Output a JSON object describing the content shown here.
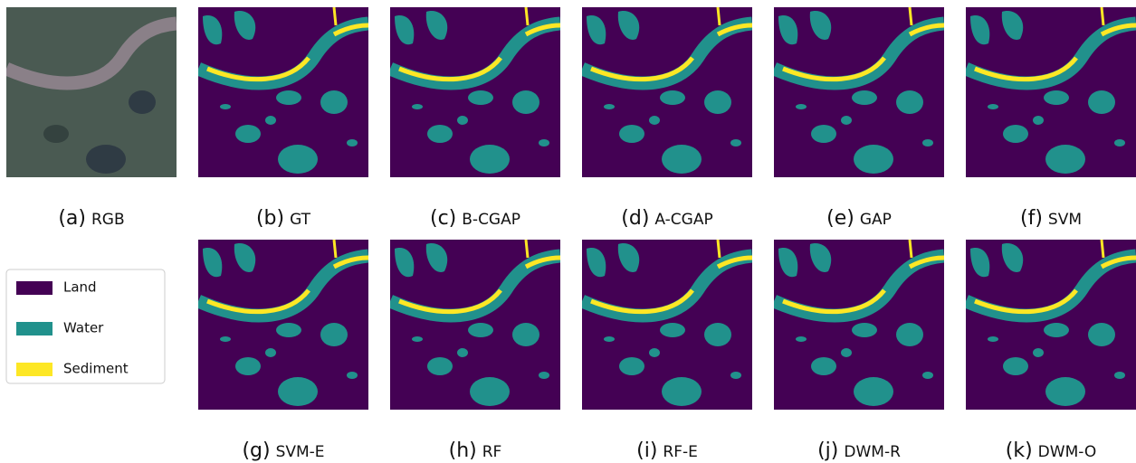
{
  "panels": [
    {
      "tag": "(a)",
      "name": "RGB",
      "kind": "rgb"
    },
    {
      "tag": "(b)",
      "name": "GT",
      "kind": "map"
    },
    {
      "tag": "(c)",
      "name": "B-CGAP",
      "kind": "map"
    },
    {
      "tag": "(d)",
      "name": "A-CGAP",
      "kind": "map"
    },
    {
      "tag": "(e)",
      "name": "GAP",
      "kind": "map"
    },
    {
      "tag": "(f)",
      "name": "SVM",
      "kind": "map"
    },
    {
      "tag": "(g)",
      "name": "SVM-E",
      "kind": "map"
    },
    {
      "tag": "(h)",
      "name": "RF",
      "kind": "map"
    },
    {
      "tag": "(i)",
      "name": "RF-E",
      "kind": "map"
    },
    {
      "tag": "(j)",
      "name": "DWM-R",
      "kind": "map"
    },
    {
      "tag": "(k)",
      "name": "DWM-O",
      "kind": "map"
    }
  ],
  "legend": {
    "items": [
      {
        "label": "Land",
        "color": "#440154"
      },
      {
        "label": "Water",
        "color": "#21918c"
      },
      {
        "label": "Sediment",
        "color": "#fde725"
      }
    ]
  }
}
